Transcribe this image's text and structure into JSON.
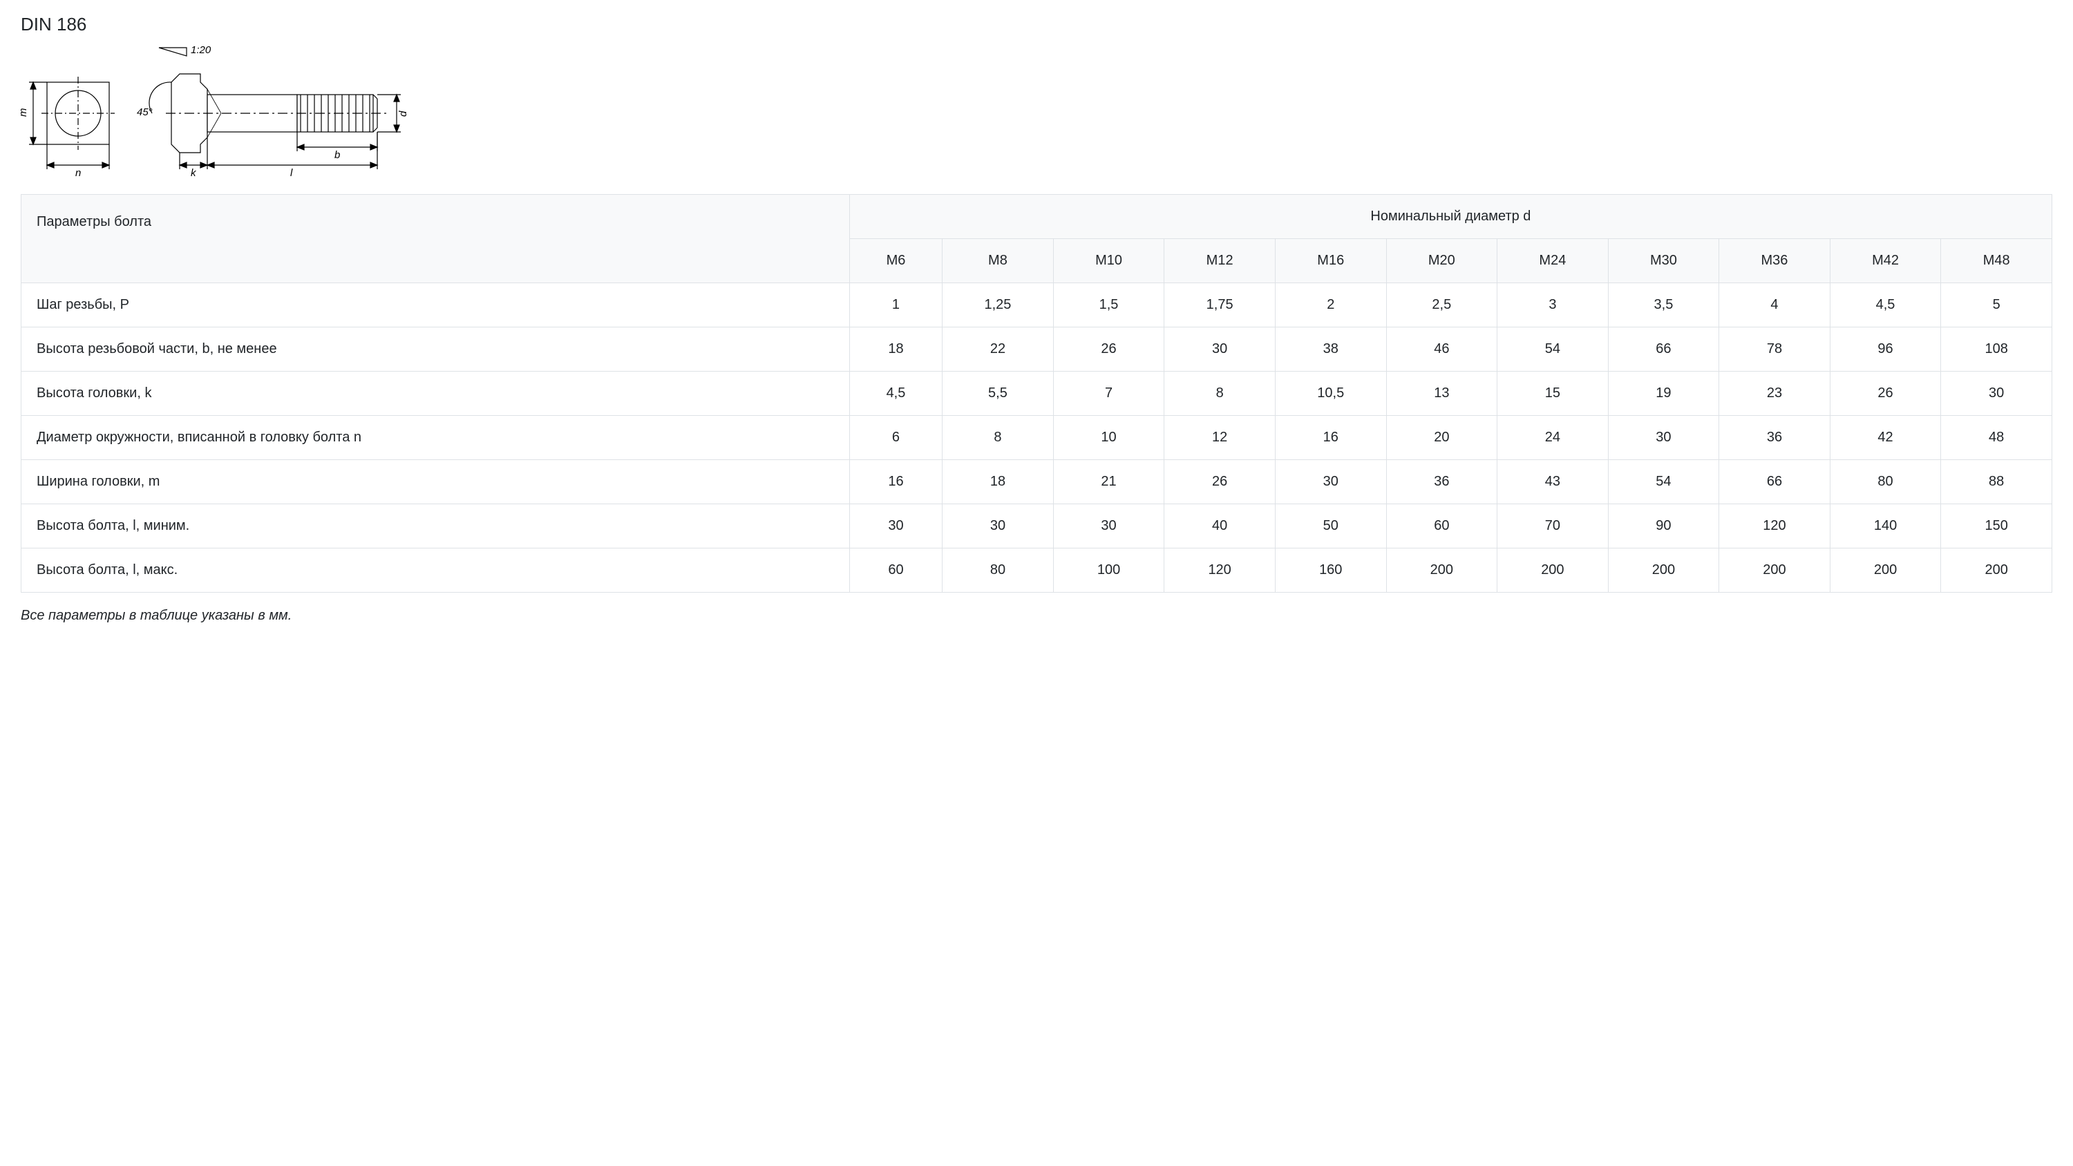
{
  "title": "DIN 186",
  "diagram": {
    "taper_label": "1:20",
    "chamfer_label": "45°",
    "dim_m": "m",
    "dim_n": "n",
    "dim_k": "k",
    "dim_l": "l",
    "dim_b": "b",
    "dim_d": "d",
    "stroke": "#000000",
    "fill": "#ffffff"
  },
  "table": {
    "param_header": "Параметры болта",
    "diameter_header": "Номинальный диаметр d",
    "columns": [
      "M6",
      "M8",
      "M10",
      "M12",
      "M16",
      "M20",
      "M24",
      "M30",
      "M36",
      "M42",
      "M48"
    ],
    "rows": [
      {
        "label": "Шаг резьбы, P",
        "values": [
          "1",
          "1,25",
          "1,5",
          "1,75",
          "2",
          "2,5",
          "3",
          "3,5",
          "4",
          "4,5",
          "5"
        ]
      },
      {
        "label": "Высота  резьбовой части, b, не менее",
        "values": [
          "18",
          "22",
          "26",
          "30",
          "38",
          "46",
          "54",
          "66",
          "78",
          "96",
          "108"
        ]
      },
      {
        "label": "Высота головки, k",
        "values": [
          "4,5",
          "5,5",
          "7",
          "8",
          "10,5",
          "13",
          "15",
          "19",
          "23",
          "26",
          "30"
        ]
      },
      {
        "label": "Диаметр окружности, вписанной в головку болта n",
        "values": [
          "6",
          "8",
          "10",
          "12",
          "16",
          "20",
          "24",
          "30",
          "36",
          "42",
          "48"
        ]
      },
      {
        "label": "Ширина головки, m",
        "values": [
          "16",
          "18",
          "21",
          "26",
          "30",
          "36",
          "43",
          "54",
          "66",
          "80",
          "88"
        ]
      },
      {
        "label": "Высота болта, l, миним.",
        "values": [
          "30",
          "30",
          "30",
          "40",
          "50",
          "60",
          "70",
          "90",
          "120",
          "140",
          "150"
        ]
      },
      {
        "label": "Высота болта, l, макс.",
        "values": [
          "60",
          "80",
          "100",
          "120",
          "160",
          "200",
          "200",
          "200",
          "200",
          "200",
          "200"
        ]
      }
    ],
    "header_bg": "#f8f9fa",
    "border_color": "#dee2e6",
    "text_color": "#212529",
    "font_size_pt": 15
  },
  "footnote": "Все параметры в таблице указаны в мм."
}
